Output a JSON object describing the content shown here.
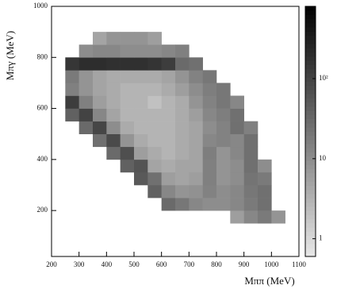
{
  "chart_data": {
    "type": "heatmap",
    "x_label": "Mππ (MeV)",
    "y_label": "Mπγ (MeV)",
    "xbins": [
      250,
      300,
      350,
      400,
      450,
      500,
      550,
      600,
      650,
      700,
      750,
      800,
      850,
      900,
      950,
      1000,
      1050
    ],
    "ybins": [
      150,
      200,
      250,
      300,
      350,
      400,
      450,
      500,
      550,
      600,
      650,
      700,
      750,
      800,
      850,
      900
    ],
    "values": [
      [
        null,
        null,
        null,
        null,
        null,
        null,
        null,
        null,
        null,
        null,
        null,
        null,
        6,
        12,
        18,
        8
      ],
      [
        null,
        null,
        null,
        null,
        null,
        null,
        null,
        30,
        20,
        12,
        10,
        10,
        12,
        18,
        25,
        null
      ],
      [
        null,
        null,
        null,
        null,
        null,
        null,
        40,
        12,
        8,
        9,
        14,
        10,
        12,
        20,
        25,
        null
      ],
      [
        null,
        null,
        null,
        null,
        null,
        50,
        25,
        6,
        5,
        6,
        15,
        8,
        10,
        22,
        18,
        null
      ],
      [
        null,
        null,
        null,
        null,
        40,
        60,
        5,
        4,
        5,
        5,
        15,
        8,
        10,
        25,
        10,
        null
      ],
      [
        null,
        null,
        null,
        30,
        70,
        6,
        4,
        3,
        4,
        5,
        16,
        8,
        12,
        25,
        null,
        null
      ],
      [
        null,
        null,
        25,
        80,
        8,
        4,
        3,
        3,
        4,
        5,
        12,
        14,
        12,
        25,
        null,
        null
      ],
      [
        null,
        30,
        90,
        10,
        4,
        3,
        3,
        3,
        4,
        5,
        10,
        14,
        25,
        15,
        null,
        null
      ],
      [
        40,
        100,
        12,
        5,
        3,
        3,
        3,
        3,
        4,
        6,
        12,
        16,
        25,
        null,
        null,
        null
      ],
      [
        120,
        15,
        6,
        4,
        3,
        3,
        2,
        3,
        4,
        8,
        14,
        20,
        12,
        null,
        null,
        null
      ],
      [
        15,
        8,
        5,
        4,
        3,
        3,
        3,
        4,
        6,
        10,
        16,
        20,
        null,
        null,
        null,
        null
      ],
      [
        18,
        8,
        5,
        4,
        4,
        4,
        4,
        5,
        8,
        14,
        20,
        null,
        null,
        null,
        null,
        null
      ],
      [
        150,
        200,
        200,
        180,
        180,
        180,
        160,
        120,
        30,
        25,
        null,
        null,
        null,
        null,
        null,
        null
      ],
      [
        null,
        10,
        12,
        12,
        10,
        10,
        10,
        12,
        15,
        null,
        null,
        null,
        null,
        null,
        null,
        null
      ],
      [
        null,
        null,
        5,
        8,
        8,
        8,
        6,
        null,
        null,
        null,
        null,
        null,
        null,
        null,
        null,
        null
      ]
    ],
    "xlim": [
      200,
      1100
    ],
    "xticks": [
      200,
      300,
      400,
      500,
      600,
      700,
      800,
      900,
      1000,
      1100
    ],
    "ylim": [
      20,
      1000
    ],
    "yticks": [
      200,
      400,
      600,
      800,
      1000
    ],
    "zlim": [
      0.6,
      800
    ],
    "zticks": [
      1,
      10,
      {
        "value": 100,
        "label": "10²"
      }
    ],
    "zlog": true,
    "colors": [
      "#e8e8e8",
      "#000000"
    ]
  }
}
